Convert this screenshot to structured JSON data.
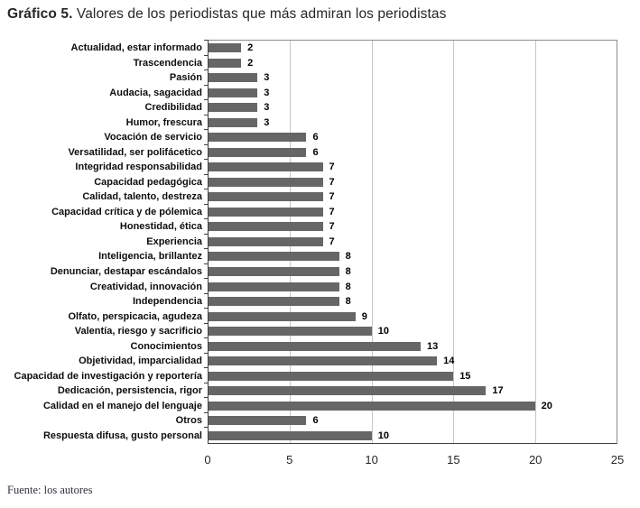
{
  "title": {
    "prefix": "Gráfico 5.",
    "rest": " Valores de los periodistas que más admiran los periodistas"
  },
  "source": "Fuente: los autores",
  "colors": {
    "bar": "#666666",
    "gridline": "#c6c6c6",
    "plot_border": "#8c8c8c",
    "axis": "#404040"
  },
  "chart_data": {
    "type": "bar",
    "orientation": "horizontal",
    "title": "Gráfico 5. Valores de los periodistas que más admiran los periodistas",
    "categories": [
      "Actualidad, estar informado",
      "Trascendencia",
      "Pasión",
      "Audacia, sagacidad",
      "Credibilidad",
      "Humor, frescura",
      "Vocación de servicio",
      "Versatilidad, ser polifácetico",
      "Integridad responsabilidad",
      "Capacidad pedagógica",
      "Calidad, talento, destreza",
      "Capacidad crítica y de pólemica",
      "Honestidad, ética",
      "Experiencia",
      "Inteligencia, brillantez",
      "Denunciar, destapar escándalos",
      "Creatividad, innovación",
      "Independencia",
      "Olfato, perspicacia, agudeza",
      "Valentía, riesgo y sacrificio",
      "Conocimientos",
      "Objetividad, imparcialidad",
      "Capacidad de investigación y reportería",
      "Dedicación, persistencia, rigor",
      "Calidad en el manejo del lenguaje",
      "Otros",
      "Respuesta difusa, gusto personal"
    ],
    "values": [
      2,
      2,
      3,
      3,
      3,
      3,
      6,
      6,
      7,
      7,
      7,
      7,
      7,
      7,
      8,
      8,
      8,
      8,
      9,
      10,
      13,
      14,
      15,
      17,
      20,
      6,
      10
    ],
    "xlabel": "",
    "ylabel": "",
    "xlim": [
      0,
      25
    ],
    "x_ticks": [
      0,
      5,
      10,
      15,
      20,
      25
    ],
    "grid": "vertical-gridlines-on",
    "legend": "none",
    "data_labels": "shown-at-bar-end",
    "source": "Fuente: los autores"
  }
}
